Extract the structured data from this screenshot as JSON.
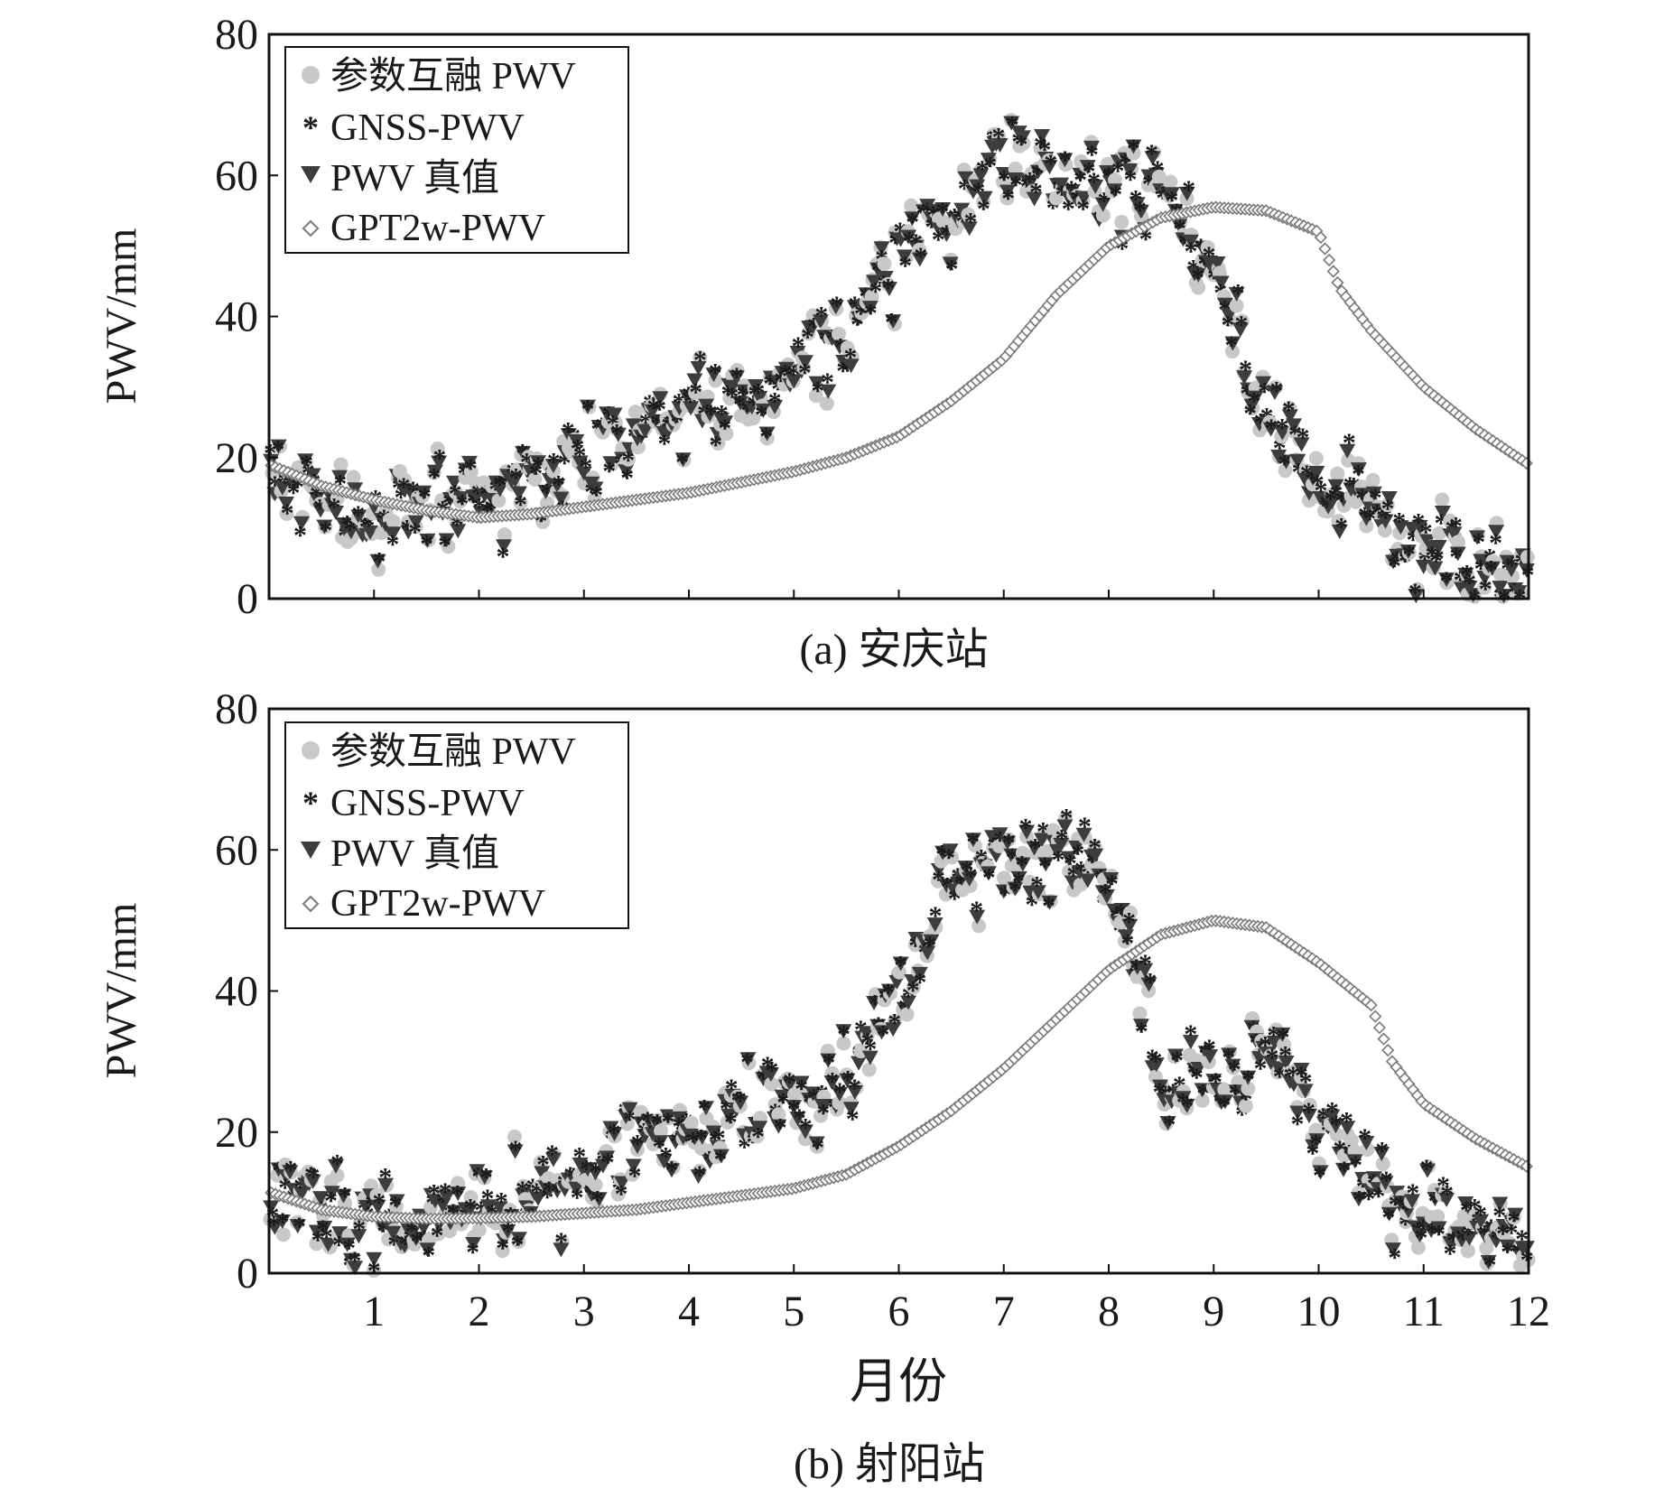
{
  "figure": {
    "xlabel": "月份",
    "x_ticks": [
      "1",
      "2",
      "3",
      "4",
      "5",
      "6",
      "7",
      "8",
      "9",
      "10",
      "11",
      "12"
    ]
  },
  "legend": {
    "fused": "参数互融 PWV",
    "gnss": "GNSS-PWV",
    "truth": "PWV 真值",
    "gpt2w": "GPT2w-PWV"
  },
  "colors": {
    "fused": "#c8c8c8",
    "gnss": "#1c1c1c",
    "truth": "#3d3d3d",
    "gpt2w": "#7a7a7a",
    "frame": "#111111"
  },
  "chart_data": [
    {
      "type": "scatter",
      "id": "anqing",
      "caption": "(a) 安庆站",
      "ylabel": "PWV/mm",
      "xlim": [
        0,
        12
      ],
      "ylim": [
        0,
        80
      ],
      "y_ticks": [
        "0",
        "20",
        "40",
        "60",
        "80"
      ],
      "gpt2w_curve": [
        [
          0,
          19
        ],
        [
          0.5,
          16
        ],
        [
          1,
          14
        ],
        [
          1.5,
          12.5
        ],
        [
          2,
          11.5
        ],
        [
          2.5,
          12
        ],
        [
          3,
          13
        ],
        [
          3.5,
          14
        ],
        [
          4,
          15
        ],
        [
          4.5,
          16.5
        ],
        [
          5,
          18
        ],
        [
          5.5,
          20
        ],
        [
          6,
          23
        ],
        [
          6.5,
          28
        ],
        [
          7,
          34
        ],
        [
          7.5,
          43
        ],
        [
          8,
          50
        ],
        [
          8.5,
          54
        ],
        [
          9,
          55.5
        ],
        [
          9.5,
          55
        ],
        [
          10,
          52
        ],
        [
          10.2,
          44
        ],
        [
          10.5,
          38
        ],
        [
          11,
          30
        ],
        [
          11.5,
          24
        ],
        [
          12,
          19
        ]
      ],
      "truth_seasonal": [
        [
          0,
          18
        ],
        [
          0.5,
          14
        ],
        [
          1,
          12
        ],
        [
          1.5,
          13
        ],
        [
          2,
          15
        ],
        [
          2.5,
          17
        ],
        [
          3,
          21
        ],
        [
          3.5,
          26
        ],
        [
          4,
          27
        ],
        [
          4.5,
          28
        ],
        [
          5,
          32
        ],
        [
          5.5,
          40
        ],
        [
          6,
          48
        ],
        [
          6.5,
          55
        ],
        [
          7,
          62
        ],
        [
          7.5,
          60
        ],
        [
          8,
          60
        ],
        [
          8.5,
          58
        ],
        [
          9,
          48
        ],
        [
          9.5,
          25
        ],
        [
          10,
          18
        ],
        [
          10.5,
          12
        ],
        [
          11,
          7
        ],
        [
          11.5,
          6
        ],
        [
          12,
          5
        ]
      ],
      "noise_amp": 10,
      "n_points": 330
    },
    {
      "type": "scatter",
      "id": "sheyang",
      "caption": "(b) 射阳站",
      "ylabel": "PWV/mm",
      "xlim": [
        0,
        12
      ],
      "ylim": [
        0,
        80
      ],
      "y_ticks": [
        "0",
        "20",
        "40",
        "60",
        "80"
      ],
      "gpt2w_curve": [
        [
          0,
          11.5
        ],
        [
          0.5,
          9
        ],
        [
          1,
          8
        ],
        [
          1.5,
          7.7
        ],
        [
          2,
          7.8
        ],
        [
          2.5,
          8
        ],
        [
          3,
          8.5
        ],
        [
          3.5,
          9
        ],
        [
          4,
          10
        ],
        [
          4.5,
          11
        ],
        [
          5,
          12
        ],
        [
          5.5,
          14
        ],
        [
          6,
          18
        ],
        [
          6.5,
          23
        ],
        [
          7,
          29
        ],
        [
          7.5,
          36
        ],
        [
          8,
          43
        ],
        [
          8.5,
          48
        ],
        [
          9,
          50
        ],
        [
          9.5,
          49
        ],
        [
          10,
          44
        ],
        [
          10.5,
          38
        ],
        [
          10.7,
          30
        ],
        [
          11,
          24
        ],
        [
          11.5,
          19
        ],
        [
          12,
          15
        ]
      ],
      "truth_seasonal": [
        [
          0,
          10
        ],
        [
          0.5,
          9
        ],
        [
          1,
          8
        ],
        [
          1.5,
          8
        ],
        [
          2,
          9
        ],
        [
          2.5,
          11
        ],
        [
          3,
          14
        ],
        [
          3.5,
          17
        ],
        [
          4,
          18
        ],
        [
          4.5,
          22
        ],
        [
          5,
          25
        ],
        [
          5.5,
          28
        ],
        [
          6,
          40
        ],
        [
          6.5,
          58
        ],
        [
          7,
          60
        ],
        [
          7.5,
          60
        ],
        [
          8,
          55
        ],
        [
          8.5,
          30
        ],
        [
          9,
          27
        ],
        [
          9.5,
          32
        ],
        [
          10,
          20
        ],
        [
          10.5,
          12
        ],
        [
          11,
          8
        ],
        [
          11.5,
          6
        ],
        [
          12,
          6
        ]
      ],
      "noise_amp": 10,
      "n_points": 330
    }
  ]
}
